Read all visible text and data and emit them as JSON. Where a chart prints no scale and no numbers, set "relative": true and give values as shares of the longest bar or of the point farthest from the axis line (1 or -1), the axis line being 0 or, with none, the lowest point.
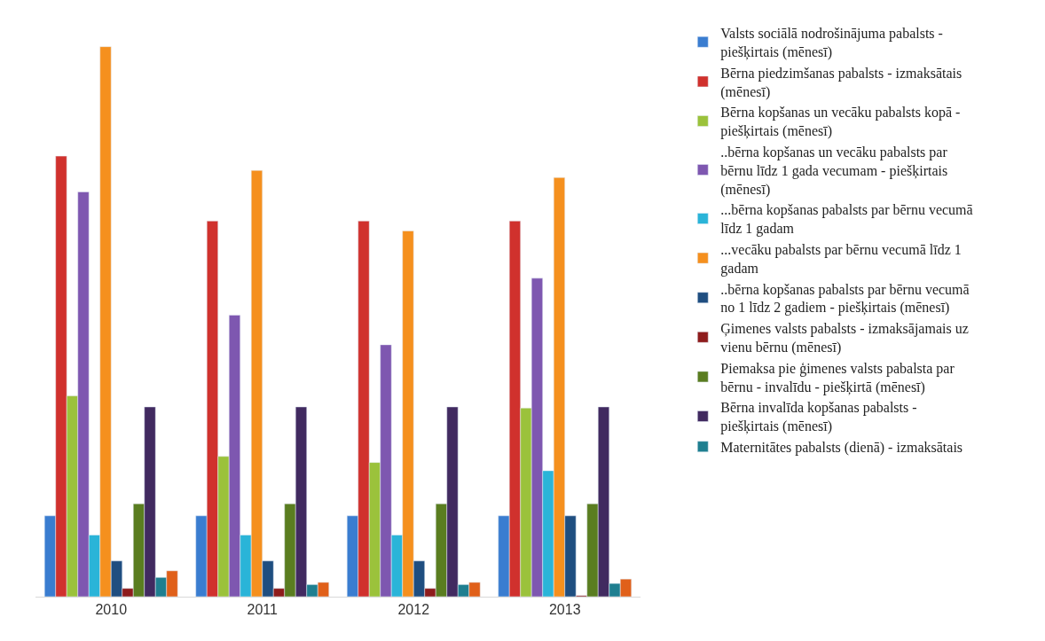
{
  "chart_data": {
    "type": "bar",
    "relative": true,
    "legend": "right",
    "categories": [
      "2010",
      "2011",
      "2012",
      "2013"
    ],
    "series": [
      {
        "name": "Valsts sociālā nodrošinājuma pabalsts - piešķirtais (mēnesī)",
        "color": "#3a7dd0",
        "values": [
          0.147,
          0.147,
          0.147,
          0.147
        ]
      },
      {
        "name": "Bērna piedzimšanas pabalsts - izmaksātais (mēnesī)",
        "color": "#d0312d",
        "values": [
          0.801,
          0.683,
          0.683,
          0.683
        ]
      },
      {
        "name": "Bērna kopšanas un vecāku pabalsts kopā - piešķirtais (mēnesī)",
        "color": "#9bc23b",
        "values": [
          0.365,
          0.255,
          0.244,
          0.343
        ]
      },
      {
        "name": "..bērna kopšanas un vecāku pabalsts par bērnu līdz 1 gada vecumam - piešķirtais (mēnesī)",
        "color": "#7e57b0",
        "values": [
          0.736,
          0.512,
          0.458,
          0.579
        ]
      },
      {
        "name": "...bērna kopšanas pabalsts par bērnu vecumā līdz 1 gadam",
        "color": "#2ab4d8",
        "values": [
          0.112,
          0.112,
          0.112,
          0.229
        ]
      },
      {
        "name": "...vecāku pabalsts par bērnu vecumā līdz 1 gadam",
        "color": "#f5901e",
        "values": [
          1.0,
          0.775,
          0.665,
          0.762
        ]
      },
      {
        "name": "..bērna kopšanas pabalsts par bērnu vecumā no 1 līdz 2 gadiem - piešķirtais (mēnesī)",
        "color": "#1f4e80",
        "values": [
          0.065,
          0.065,
          0.065,
          0.147
        ]
      },
      {
        "name": "Ģimenes valsts pabalsts - izmaksājamais uz vienu bērnu (mēnesī)",
        "color": "#8e1c1c",
        "values": [
          0.015,
          0.015,
          0.015,
          0.002
        ]
      },
      {
        "name": "Piemaksa pie ģimenes valsts pabalsta par bērnu - invalīdu - piešķirtā (mēnesī)",
        "color": "#5a7d20",
        "values": [
          0.169,
          0.169,
          0.169,
          0.169
        ]
      },
      {
        "name": "Bērna invalīda kopšanas pabalsts - piešķirtais (mēnesī)",
        "color": "#412a60",
        "values": [
          0.345,
          0.345,
          0.345,
          0.345
        ]
      },
      {
        "name": "Maternitātes pabalsts (dienā) - izmaksātais",
        "color": "#1f7f90",
        "values": [
          0.035,
          0.022,
          0.022,
          0.024
        ]
      },
      {
        "color": "#e0601a",
        "values": [
          0.047,
          0.026,
          0.026,
          0.032
        ]
      }
    ]
  }
}
